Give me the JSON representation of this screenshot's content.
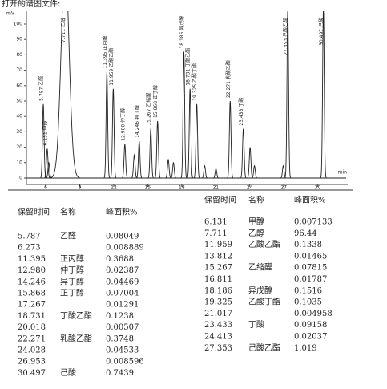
{
  "header": {
    "title": "打开的谱图文件:"
  },
  "chart_data": {
    "type": "line",
    "y_unit": "mV",
    "x_unit": "min",
    "xlim": [
      4.3,
      32.5
    ],
    "ylim": [
      0,
      105
    ],
    "xticks": [
      6,
      9,
      12,
      15,
      18,
      21,
      24,
      27,
      30
    ],
    "yticks": [
      0,
      10,
      20,
      30,
      40,
      50,
      60,
      70,
      80,
      90,
      100
    ],
    "color": "#222222",
    "peaks": [
      {
        "rt": 5.787,
        "height": 48,
        "label": "5.787 乙醛"
      },
      {
        "rt": 6.131,
        "height": 19,
        "label": "6.131 甲醇"
      },
      {
        "rt": 6.273,
        "height": 10
      },
      {
        "rt": 7.711,
        "height": 140,
        "label": "7.711 乙醇"
      },
      {
        "rt": 11.395,
        "height": 69,
        "label": "11.395 正丙醇"
      },
      {
        "rt": 11.959,
        "height": 58,
        "label": "11.959 乙酸乙酯"
      },
      {
        "rt": 12.98,
        "height": 22,
        "label": "12.980 仲丁醇"
      },
      {
        "rt": 13.812,
        "height": 15
      },
      {
        "rt": 14.246,
        "height": 24,
        "label": "14.246 异丁醇"
      },
      {
        "rt": 15.267,
        "height": 32,
        "label": "15.267 乙缩醛"
      },
      {
        "rt": 15.868,
        "height": 37,
        "label": "15.868 正丁醇"
      },
      {
        "rt": 16.811,
        "height": 12
      },
      {
        "rt": 17.267,
        "height": 10
      },
      {
        "rt": 18.186,
        "height": 82,
        "label": "18.186 异戊醇"
      },
      {
        "rt": 18.731,
        "height": 58,
        "label": "18.731 丁酸乙酯"
      },
      {
        "rt": 19.325,
        "height": 48,
        "label": "19.325 乙酸丁酯"
      },
      {
        "rt": 20.018,
        "height": 8
      },
      {
        "rt": 21.017,
        "height": 6
      },
      {
        "rt": 22.271,
        "height": 50,
        "label": "22.271 乳酸乙酯"
      },
      {
        "rt": 23.433,
        "height": 32,
        "label": "23.433 丁酸"
      },
      {
        "rt": 24.028,
        "height": 20
      },
      {
        "rt": 24.413,
        "height": 8
      },
      {
        "rt": 26.953,
        "height": 8
      },
      {
        "rt": 27.353,
        "height": 110,
        "label": "27.353 己酸乙酯"
      },
      {
        "rt": 30.497,
        "height": 110,
        "label": "30.497 己酸"
      }
    ]
  },
  "table": {
    "header": [
      "保留时间",
      "名称",
      "峰面积%"
    ],
    "left": [
      [
        "5.787",
        "乙醛",
        "0.08049"
      ],
      [
        "6.273",
        null,
        "0.008889"
      ],
      [
        "11.395",
        "正丙醇",
        "0.3688"
      ],
      [
        "12.980",
        "仲丁醇",
        "0.02387"
      ],
      [
        "14.246",
        "异丁醇",
        "0.04469"
      ],
      [
        "15.868",
        "正丁醇",
        "0.07004"
      ],
      [
        "17.267",
        null,
        "0.01291"
      ],
      [
        "18.731",
        "丁酸乙酯",
        "0.1238"
      ],
      [
        "20.018",
        null,
        "0.00507"
      ],
      [
        "22.271",
        "乳酸乙酯",
        "0.3748"
      ],
      [
        "24.028",
        null,
        "0.04533"
      ],
      [
        "26.953",
        null,
        "0.008596"
      ],
      [
        "30.497",
        "己酸",
        "0.7439"
      ]
    ],
    "right": [
      [
        "6.131",
        "甲醇",
        "0.007133"
      ],
      [
        "7.711",
        "乙醇",
        "96.44"
      ],
      [
        "11.959",
        "乙酸乙酯",
        "0.1338"
      ],
      [
        "13.812",
        null,
        "0.01465"
      ],
      [
        "15.267",
        "乙缩醛",
        "0.07815"
      ],
      [
        "16.811",
        null,
        "0.01787"
      ],
      [
        "18.186",
        "异戊醇",
        "0.1516"
      ],
      [
        "19.325",
        "乙酸丁酯",
        "0.1035"
      ],
      [
        "21.017",
        null,
        "0.004958"
      ],
      [
        "23.433",
        "丁酸",
        "0.09158"
      ],
      [
        "24.413",
        null,
        "0.02037"
      ],
      [
        "27.353",
        "己酸乙酯",
        "1.019"
      ]
    ]
  }
}
